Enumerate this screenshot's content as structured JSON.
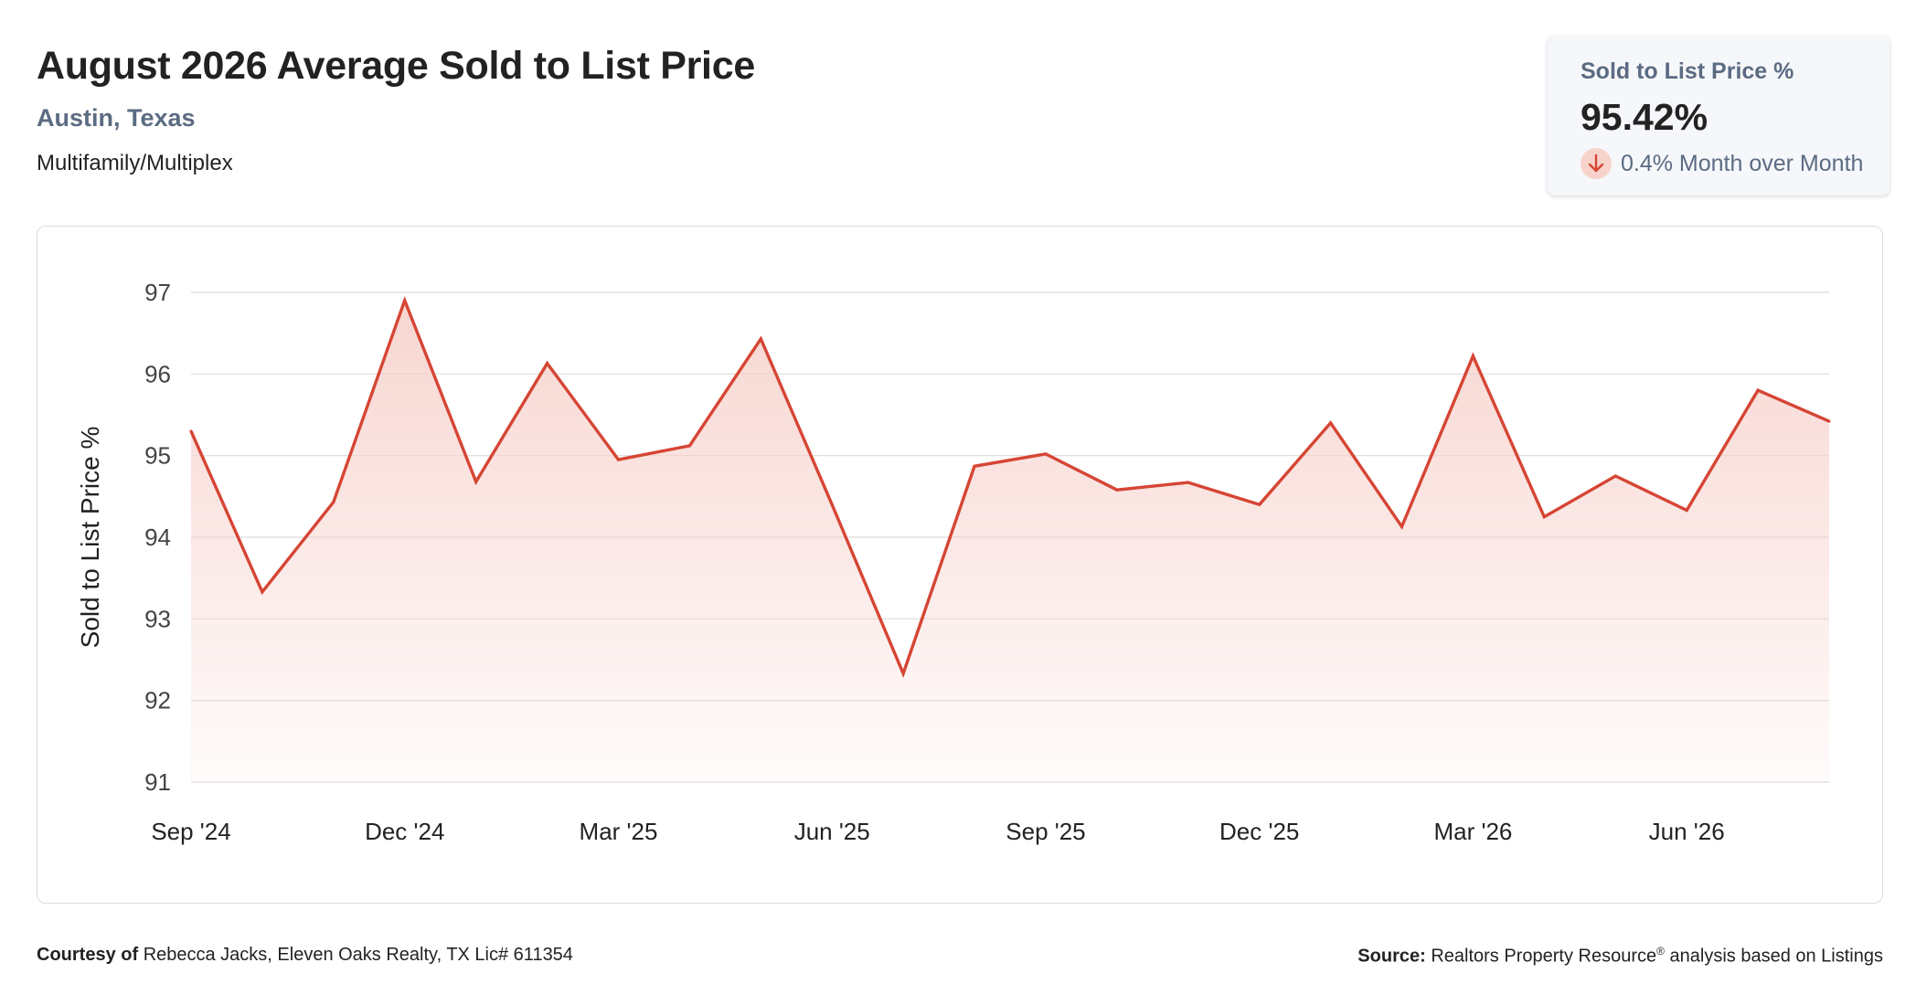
{
  "header": {
    "title": "August 2026 Average Sold to List Price",
    "location": "Austin, Texas",
    "property_type": "Multifamily/Multiplex"
  },
  "kpi": {
    "label": "Sold to List Price %",
    "value": "95.42%",
    "change_text": "0.4% Month over Month",
    "direction": "down",
    "direction_icon": "arrow-down-icon"
  },
  "colors": {
    "line": "#d64534",
    "fill": "#f6cfc9",
    "grid": "#dcdcdc",
    "accent_text": "#5b6b82"
  },
  "chart_data": {
    "type": "area",
    "x": [
      "Sep '24",
      "Oct '24",
      "Nov '24",
      "Dec '24",
      "Jan '25",
      "Feb '25",
      "Mar '25",
      "Apr '25",
      "May '25",
      "Jun '25",
      "Jul '25",
      "Aug '25",
      "Sep '25",
      "Oct '25",
      "Nov '25",
      "Dec '25",
      "Jan '26",
      "Feb '26",
      "Mar '26",
      "Apr '26",
      "May '26",
      "Jun '26",
      "Jul '26",
      "Aug '26"
    ],
    "series": [
      {
        "values": [
          95.3,
          93.33,
          94.43,
          96.9,
          94.68,
          96.13,
          94.95,
          95.12,
          96.43,
          94.4,
          92.33,
          94.87,
          95.02,
          94.58,
          94.67,
          94.4,
          95.4,
          94.13,
          96.22,
          94.25,
          94.75,
          94.33,
          95.8,
          95.42
        ]
      }
    ],
    "ylabel": "Sold to List Price %",
    "ylim": [
      91,
      97
    ],
    "yticks": [
      "91",
      "92",
      "93",
      "94",
      "95",
      "96",
      "97"
    ],
    "xticks": [
      {
        "index": 0,
        "label": "Sep '24"
      },
      {
        "index": 3,
        "label": "Dec '24"
      },
      {
        "index": 6,
        "label": "Mar '25"
      },
      {
        "index": 9,
        "label": "Jun '25"
      },
      {
        "index": 12,
        "label": "Sep '25"
      },
      {
        "index": 15,
        "label": "Dec '25"
      },
      {
        "index": 18,
        "label": "Mar '26"
      },
      {
        "index": 21,
        "label": "Jun '26"
      }
    ],
    "grid": true,
    "legend": "none"
  },
  "footer": {
    "courtesy_label": "Courtesy of",
    "courtesy_text": "Rebecca Jacks, Eleven Oaks Realty, TX Lic# 611354",
    "source_label": "Source:",
    "source_text": "Realtors Property Resource",
    "source_mark": "®",
    "source_suffix": "analysis based on Listings"
  }
}
